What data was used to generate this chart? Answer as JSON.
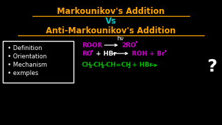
{
  "background_color": "#000000",
  "title1": "Markounikov's Addition",
  "title2": "Vs",
  "title3": "Anti-Markounikov's Addition",
  "title_color": "#FFA500",
  "vs_color": "#00CCCC",
  "bullet_items": [
    "Definition",
    "Orientation",
    "Mechanism",
    "exmples"
  ],
  "bullet_color": "#FFFFFF",
  "box_edge_color": "#FFFFFF",
  "magenta": "#CC00CC",
  "white": "#FFFFFF",
  "green": "#00BB00",
  "reaction_color": "#00BB00",
  "question_color": "#FFFFFF",
  "hv_text": "hν",
  "hv_color": "#FFFFFF"
}
